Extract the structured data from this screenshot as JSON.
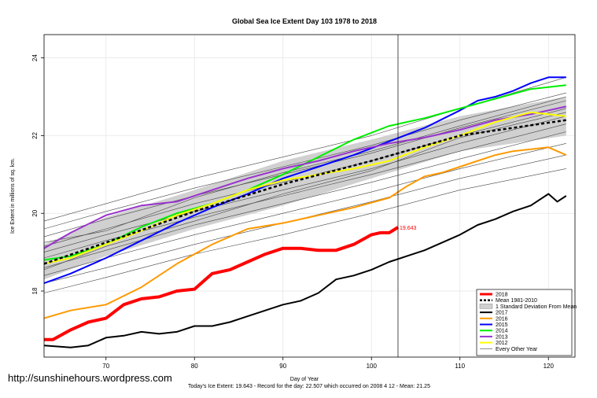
{
  "watermark": "http://sunshinehours.wordpress.com",
  "chart_data": {
    "type": "line",
    "title": "Global Sea Ice Extent Day 103 1978 to 2018",
    "xlabel": "Day of Year",
    "ylabel": "Ice Extent in millions of sq. km.",
    "footer": "Today's Ice Extent: 19.643  - Record for the day: 22.507 which occurred on 2008 4 12  - Mean: 21.25",
    "xlim": [
      63,
      123
    ],
    "ylim": [
      16.3,
      24.6
    ],
    "xticks": [
      70,
      80,
      90,
      100,
      110,
      120
    ],
    "yticks": [
      18,
      20,
      22,
      24
    ],
    "current_day": 103,
    "current_value_label": "19.643",
    "grid": true,
    "legend_position": "bottom-right",
    "std_band": {
      "name": "1 Standard Deviation From Mean",
      "x": [
        63,
        70,
        80,
        90,
        100,
        110,
        122
      ],
      "upper": [
        19.2,
        19.9,
        20.6,
        21.35,
        21.9,
        22.5,
        23.0
      ],
      "lower": [
        18.3,
        18.9,
        19.6,
        20.2,
        20.9,
        21.6,
        22.0
      ]
    },
    "series": [
      {
        "name": "2018",
        "color": "#ff0000",
        "width": 4,
        "dash": "",
        "x": [
          63,
          64,
          66,
          68,
          70,
          72,
          74,
          76,
          78,
          80,
          82,
          84,
          86,
          88,
          90,
          92,
          94,
          96,
          98,
          100,
          101,
          102,
          103
        ],
        "values": [
          16.75,
          16.75,
          17.0,
          17.2,
          17.3,
          17.65,
          17.8,
          17.85,
          18.0,
          18.05,
          18.45,
          18.55,
          18.75,
          18.95,
          19.1,
          19.1,
          19.05,
          19.05,
          19.2,
          19.45,
          19.5,
          19.5,
          19.64
        ]
      },
      {
        "name": "Mean 1981-2010",
        "color": "#000000",
        "width": 2.5,
        "dash": "4,3",
        "x": [
          63,
          70,
          80,
          90,
          100,
          110,
          122
        ],
        "values": [
          18.7,
          19.25,
          20.05,
          20.75,
          21.35,
          22.0,
          22.4
        ]
      },
      {
        "name": "2017",
        "color": "#000000",
        "width": 2,
        "dash": "",
        "x": [
          63,
          66,
          68,
          70,
          72,
          74,
          76,
          78,
          80,
          82,
          84,
          86,
          88,
          90,
          92,
          94,
          96,
          98,
          100,
          102,
          104,
          106,
          108,
          110,
          112,
          114,
          116,
          118,
          120,
          121,
          122
        ],
        "values": [
          16.6,
          16.55,
          16.6,
          16.8,
          16.85,
          16.95,
          16.9,
          16.95,
          17.1,
          17.1,
          17.2,
          17.35,
          17.5,
          17.65,
          17.75,
          17.95,
          18.3,
          18.4,
          18.55,
          18.75,
          18.9,
          19.05,
          19.25,
          19.45,
          19.7,
          19.85,
          20.05,
          20.2,
          20.5,
          20.3,
          20.45
        ]
      },
      {
        "name": "2016",
        "color": "#ff9900",
        "width": 2,
        "dash": "",
        "x": [
          63,
          66,
          70,
          74,
          78,
          82,
          86,
          90,
          94,
          98,
          102,
          104,
          106,
          108,
          110,
          112,
          114,
          116,
          118,
          120,
          122
        ],
        "values": [
          17.3,
          17.5,
          17.65,
          18.1,
          18.7,
          19.2,
          19.6,
          19.75,
          19.95,
          20.15,
          20.4,
          20.7,
          20.95,
          21.05,
          21.2,
          21.35,
          21.5,
          21.6,
          21.65,
          21.7,
          21.5
        ]
      },
      {
        "name": "2015",
        "color": "#0000ff",
        "width": 2,
        "dash": "",
        "x": [
          63,
          66,
          70,
          74,
          78,
          82,
          86,
          90,
          94,
          98,
          102,
          106,
          110,
          112,
          114,
          116,
          118,
          120,
          122
        ],
        "values": [
          18.2,
          18.45,
          18.85,
          19.3,
          19.75,
          20.15,
          20.5,
          20.9,
          21.2,
          21.5,
          21.85,
          22.2,
          22.65,
          22.9,
          23.0,
          23.15,
          23.35,
          23.5,
          23.5
        ]
      },
      {
        "name": "2014",
        "color": "#00ee00",
        "width": 2,
        "dash": "",
        "x": [
          63,
          66,
          70,
          74,
          78,
          82,
          86,
          90,
          94,
          98,
          102,
          106,
          110,
          114,
          118,
          122
        ],
        "values": [
          18.8,
          18.9,
          19.2,
          19.65,
          20.0,
          20.25,
          20.6,
          21.0,
          21.45,
          21.9,
          22.25,
          22.45,
          22.7,
          22.95,
          23.2,
          23.3
        ]
      },
      {
        "name": "2013",
        "color": "#9933cc",
        "width": 2,
        "dash": "",
        "x": [
          63,
          66,
          70,
          74,
          78,
          82,
          86,
          90,
          94,
          98,
          102,
          106,
          110,
          114,
          118,
          122
        ],
        "values": [
          19.1,
          19.5,
          19.95,
          20.2,
          20.3,
          20.6,
          20.9,
          21.15,
          21.35,
          21.6,
          21.8,
          21.95,
          22.15,
          22.4,
          22.55,
          22.75
        ]
      },
      {
        "name": "2012",
        "color": "#ffff00",
        "width": 2,
        "dash": "",
        "x": [
          63,
          66,
          70,
          74,
          78,
          82,
          86,
          90,
          94,
          98,
          102,
          106,
          110,
          114,
          118,
          122
        ],
        "values": [
          18.7,
          18.85,
          19.2,
          19.55,
          19.95,
          20.25,
          20.6,
          20.85,
          21.0,
          21.15,
          21.35,
          21.7,
          22.0,
          22.35,
          22.6,
          22.5
        ]
      },
      {
        "name": "Every Other Year",
        "color": "#444444",
        "width": 0.6,
        "dash": "",
        "x": [
          63,
          70,
          80,
          90,
          100,
          110,
          122
        ],
        "values": [
          19.8,
          20.25,
          20.9,
          21.45,
          22.0,
          22.7,
          23.5
        ]
      },
      {
        "name": "",
        "color": "#444444",
        "width": 0.6,
        "dash": "",
        "x": [
          63,
          70,
          80,
          90,
          100,
          110,
          122
        ],
        "values": [
          19.6,
          20.05,
          20.65,
          21.2,
          21.75,
          22.4,
          23.1
        ]
      },
      {
        "name": "",
        "color": "#444444",
        "width": 0.6,
        "dash": "",
        "x": [
          63,
          70,
          80,
          90,
          100,
          110,
          122
        ],
        "values": [
          19.4,
          19.85,
          20.45,
          21.0,
          21.55,
          22.2,
          22.9
        ]
      },
      {
        "name": "",
        "color": "#444444",
        "width": 0.6,
        "dash": "",
        "x": [
          63,
          70,
          80,
          90,
          100,
          110,
          122
        ],
        "values": [
          19.15,
          19.6,
          20.25,
          20.8,
          21.35,
          22.0,
          22.7
        ]
      },
      {
        "name": "",
        "color": "#444444",
        "width": 0.6,
        "dash": "",
        "x": [
          63,
          70,
          80,
          90,
          100,
          110,
          122
        ],
        "values": [
          19.0,
          19.45,
          20.05,
          20.6,
          21.15,
          21.8,
          22.5
        ]
      },
      {
        "name": "",
        "color": "#444444",
        "width": 0.6,
        "dash": "",
        "x": [
          63,
          70,
          80,
          90,
          100,
          110,
          122
        ],
        "values": [
          18.85,
          19.3,
          19.9,
          20.45,
          21.0,
          21.6,
          22.3
        ]
      },
      {
        "name": "",
        "color": "#444444",
        "width": 0.6,
        "dash": "",
        "x": [
          63,
          70,
          80,
          90,
          100,
          110,
          122
        ],
        "values": [
          18.6,
          19.05,
          19.7,
          20.25,
          20.8,
          21.4,
          22.1
        ]
      },
      {
        "name": "",
        "color": "#444444",
        "width": 0.6,
        "dash": "",
        "x": [
          63,
          70,
          80,
          90,
          100,
          110,
          122
        ],
        "values": [
          18.4,
          18.85,
          19.45,
          20.0,
          20.55,
          21.15,
          21.8
        ]
      },
      {
        "name": "",
        "color": "#444444",
        "width": 0.6,
        "dash": "",
        "x": [
          63,
          70,
          80,
          90,
          100,
          110,
          122
        ],
        "values": [
          18.2,
          18.6,
          19.2,
          19.75,
          20.3,
          20.9,
          21.5
        ]
      },
      {
        "name": "",
        "color": "#444444",
        "width": 0.6,
        "dash": "",
        "x": [
          63,
          70,
          80,
          90,
          100,
          110,
          122
        ],
        "values": [
          17.95,
          18.35,
          18.95,
          19.45,
          20.0,
          20.6,
          21.15
        ]
      },
      {
        "name": "",
        "color": "#444444",
        "width": 0.6,
        "dash": "",
        "x": [
          63,
          70,
          80,
          90,
          100,
          110,
          122
        ],
        "values": [
          19.25,
          19.55,
          20.4,
          21.05,
          21.6,
          22.25,
          23.0
        ]
      },
      {
        "name": "",
        "color": "#444444",
        "width": 0.6,
        "dash": "",
        "x": [
          63,
          70,
          80,
          90,
          100,
          110,
          122
        ],
        "values": [
          18.55,
          19.15,
          19.8,
          20.5,
          21.1,
          21.95,
          22.6
        ]
      }
    ]
  }
}
